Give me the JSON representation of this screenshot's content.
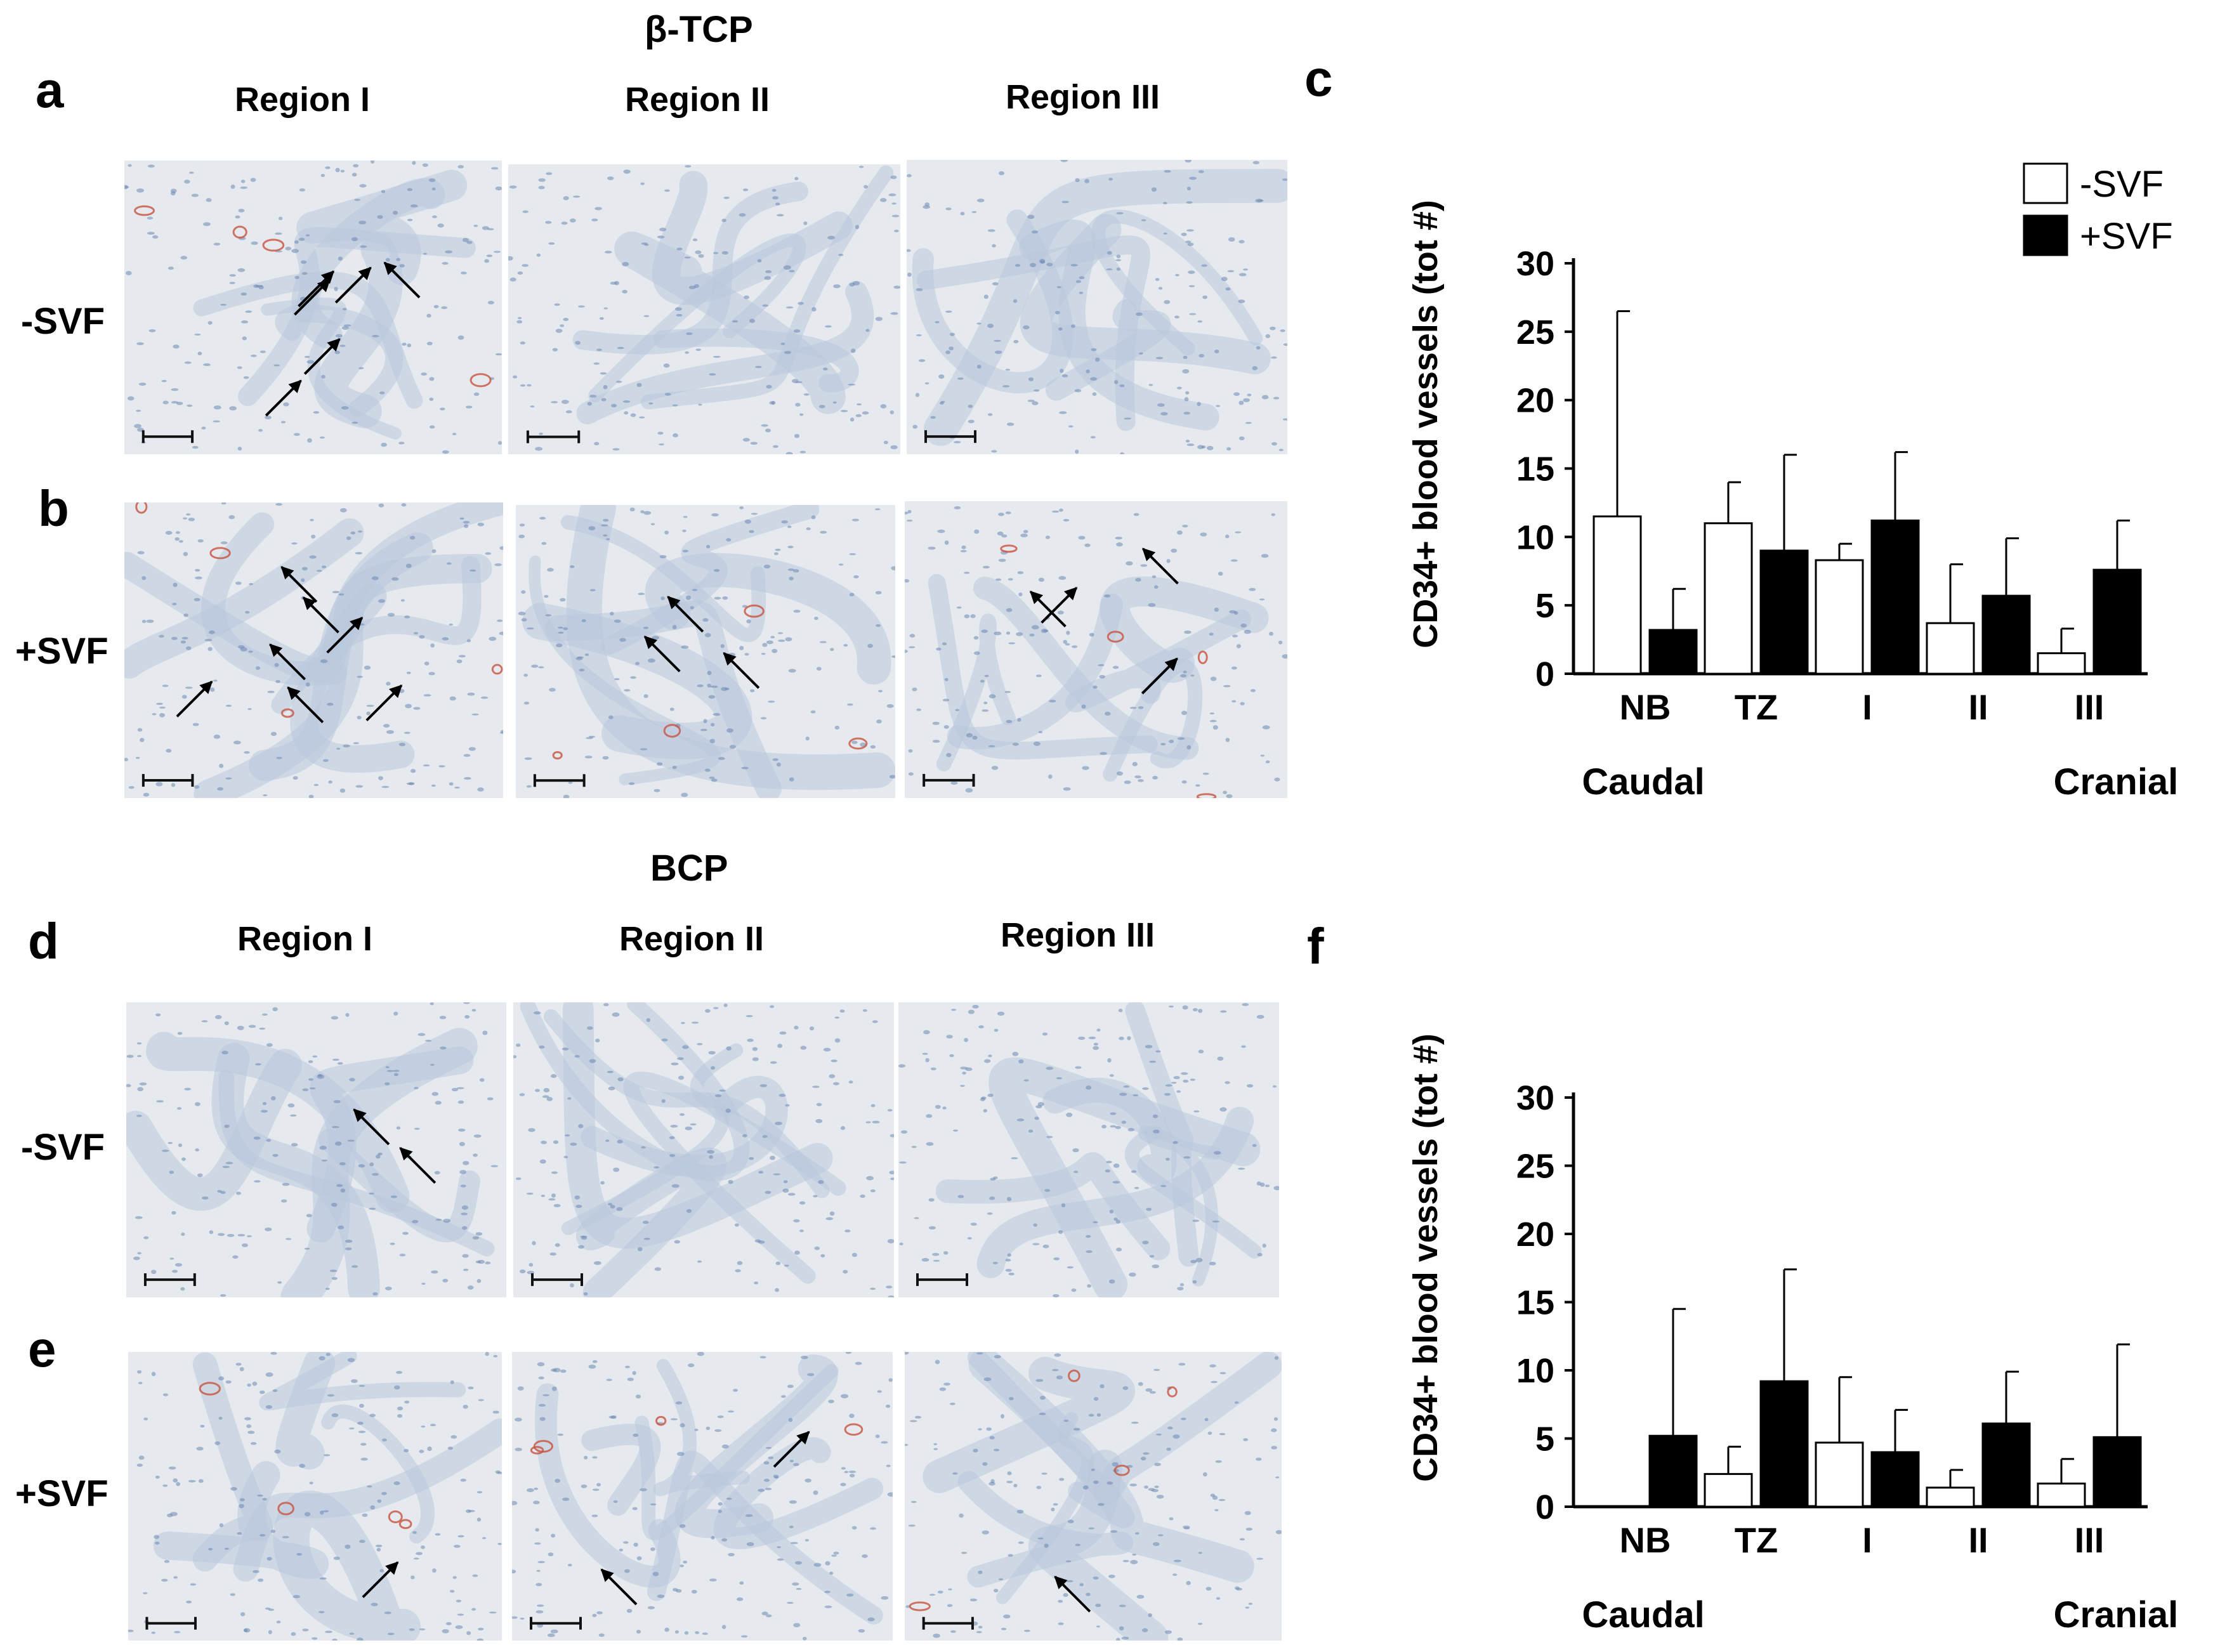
{
  "figure": {
    "groups": [
      {
        "id": "btcp",
        "title": "β-TCP",
        "panel_letters": [
          "a",
          "b"
        ],
        "regions": [
          "Region I",
          "Region II",
          "Region III"
        ],
        "rows": [
          "-SVF",
          "+SVF"
        ],
        "chart_letter": "c"
      },
      {
        "id": "bcp",
        "title": "BCP",
        "panel_letters": [
          "d",
          "e"
        ],
        "regions": [
          "Region I",
          "Region II",
          "Region III"
        ],
        "rows": [
          "-SVF",
          "+SVF"
        ],
        "chart_letter": "f"
      }
    ],
    "colors": {
      "tissue_bg": "#e6eaee",
      "stroma": "#b9c8dc",
      "nuclei": "#6c86b3",
      "vessel": "#c9523e",
      "arrow": "#000000"
    }
  },
  "chart_data": [
    {
      "type": "bar",
      "panel": "c",
      "title": "",
      "ylabel": "CD34+ blood vessels (tot #)",
      "xlabel": "",
      "categories": [
        "NB",
        "TZ",
        "I",
        "II",
        "III"
      ],
      "ylim": [
        0,
        30
      ],
      "yticks": [
        "0",
        "5",
        "10",
        "15",
        "20",
        "25",
        "30"
      ],
      "legend_position": "top-right",
      "series": [
        {
          "name": "-SVF",
          "fill": "#ffffff",
          "values": [
            11.5,
            11,
            8.3,
            3.7,
            1.5
          ],
          "errors": [
            15,
            3,
            1.2,
            4.3,
            1.8
          ]
        },
        {
          "name": "+SVF",
          "fill": "#000000",
          "values": [
            3.2,
            9,
            11.2,
            5.7,
            7.6
          ],
          "errors": [
            3,
            7,
            5,
            4.2,
            3.6
          ]
        }
      ],
      "bottom_labels": {
        "left": "Caudal",
        "right": "Cranial"
      }
    },
    {
      "type": "bar",
      "panel": "f",
      "title": "",
      "ylabel": "CD34+ blood vessels (tot #)",
      "xlabel": "",
      "categories": [
        "NB",
        "TZ",
        "I",
        "II",
        "III"
      ],
      "ylim": [
        0,
        30
      ],
      "yticks": [
        "0",
        "5",
        "10",
        "15",
        "20",
        "25",
        "30"
      ],
      "series": [
        {
          "name": "-SVF",
          "fill": "#ffffff",
          "values": [
            0,
            2.4,
            4.7,
            1.4,
            1.7
          ],
          "errors": [
            0,
            2,
            4.8,
            1.3,
            1.8
          ]
        },
        {
          "name": "+SVF",
          "fill": "#000000",
          "values": [
            5.2,
            9.2,
            4,
            6.1,
            5.1
          ],
          "errors": [
            9.3,
            8.2,
            3.1,
            3.8,
            6.8
          ]
        }
      ],
      "bottom_labels": {
        "left": "Caudal",
        "right": "Cranial"
      }
    }
  ]
}
